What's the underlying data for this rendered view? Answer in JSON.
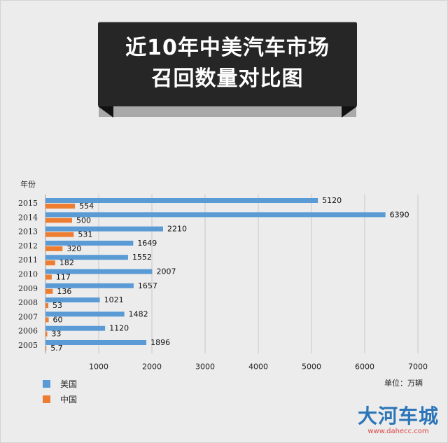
{
  "title_lines": [
    "近10年中美汽车市场",
    "召回数量对比图"
  ],
  "axis_title": "年份",
  "unit_label": "单位：万辆",
  "watermark": {
    "text": "大河车城",
    "url": "www.dahecc.com"
  },
  "colors": {
    "us": "#5b9bd5",
    "cn": "#ed7d31"
  },
  "chart_data": {
    "type": "bar",
    "orientation": "horizontal",
    "categories": [
      "2015",
      "2014",
      "2013",
      "2012",
      "2011",
      "2010",
      "2009",
      "2008",
      "2007",
      "2006",
      "2005"
    ],
    "series": [
      {
        "name": "美国",
        "values": [
          5120,
          6390,
          2210,
          1649,
          1552,
          2007,
          1657,
          1021,
          1482,
          1120,
          1896
        ],
        "labels": [
          "5120",
          "6390",
          "2210",
          "1649",
          "1552",
          "2007",
          "1657",
          "1021",
          "1482",
          "1120",
          "1896"
        ]
      },
      {
        "name": "中国",
        "values": [
          554,
          500,
          531,
          320,
          182,
          117,
          136,
          53,
          60,
          33,
          5.7
        ],
        "labels": [
          "554",
          "500",
          "531",
          "320",
          "182",
          "117",
          "136",
          "53",
          "60",
          "33",
          "5.7"
        ]
      }
    ],
    "xlim": [
      0,
      7000
    ],
    "xticks": [
      1000,
      2000,
      3000,
      4000,
      5000,
      6000,
      7000
    ],
    "grid": true,
    "legend_position": "bottom-left"
  }
}
